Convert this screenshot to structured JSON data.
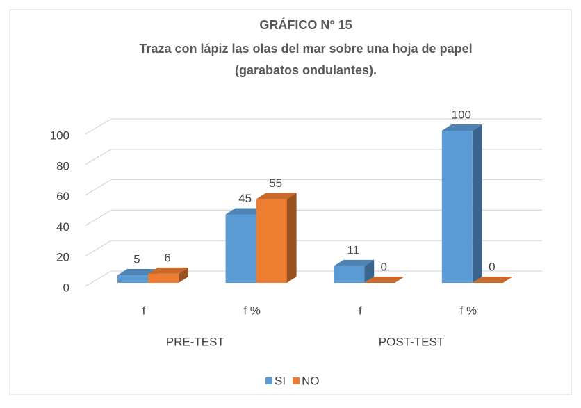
{
  "chart_data": {
    "type": "bar3d",
    "title": "GRÁFICO N° 15",
    "subtitle": [
      "Traza con lápiz las olas del mar sobre una hoja de papel",
      "(garabatos ondulantes)."
    ],
    "categories": [
      "f",
      "f %",
      "f",
      "f %"
    ],
    "group_labels": [
      "PRE-TEST",
      "POST-TEST"
    ],
    "series": [
      {
        "name": "SI",
        "color": "#5b9bd5",
        "values": [
          5,
          45,
          11,
          100
        ]
      },
      {
        "name": "NO",
        "color": "#ed7d31",
        "values": [
          6,
          55,
          0,
          0
        ]
      }
    ],
    "ylim": [
      0,
      100
    ],
    "yticks": [
      0,
      20,
      40,
      60,
      80,
      100
    ],
    "grid": true,
    "legend": "bottom"
  }
}
